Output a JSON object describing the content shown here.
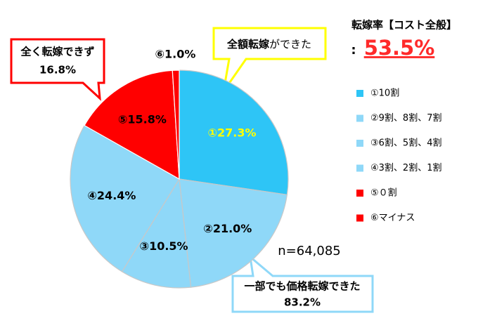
{
  "chart_data": {
    "type": "pie",
    "title": "転嫁率【コスト全般】",
    "headline": {
      "prefix": ":",
      "value": "53.5%"
    },
    "categories": [
      "①10割",
      "②9割、8割、7割",
      "③6割、5割、4割",
      "④3割、2割、1割",
      "⑤０割",
      "⑥マイナス"
    ],
    "values": [
      27.3,
      21.0,
      10.5,
      24.4,
      15.8,
      1.0
    ],
    "value_labels": [
      "①27.3%",
      "②21.0%",
      "③10.5%",
      "④24.4%",
      "⑤15.8%",
      "⑥1.0%"
    ],
    "colors": [
      "#2ec5f6",
      "#8fd8f8",
      "#8fd8f8",
      "#8fd8f8",
      "#ff0000",
      "#ff0000"
    ],
    "legend": "right",
    "annotations": {
      "none": [
        "全く転嫁できず",
        "16.8%"
      ],
      "full": {
        "bold": "全額転嫁",
        "normal": "ができた"
      },
      "partial": [
        "一部でも価格転嫁できた",
        "83.2%"
      ],
      "sample": "n=64,085"
    }
  }
}
